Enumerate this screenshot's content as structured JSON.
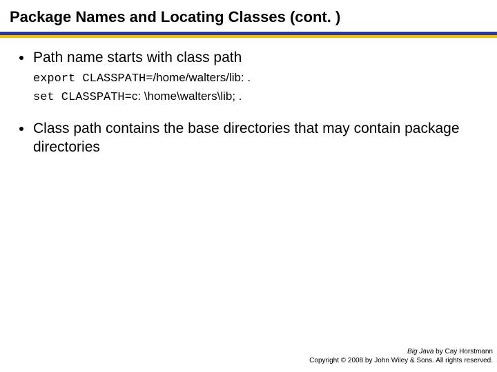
{
  "title": "Package Names and Locating Classes  (cont. )",
  "rule": {
    "blue": "#2c3a9a",
    "yellow": "#f2c400"
  },
  "bullets": [
    {
      "text": "Path name starts with class path",
      "code": [
        {
          "mono": "export CLASSPATH=",
          "rest": "/home/walters/lib: ."
        },
        {
          "mono": "set CLASSPATH=",
          "rest": "c: \\home\\walters\\lib; ."
        }
      ]
    },
    {
      "text": "Class path contains the base directories that may contain package directories",
      "code": []
    }
  ],
  "footer": {
    "book": "Big Java",
    "byline": " by Cay Horstmann",
    "copyright": "Copyright © 2008 by John Wiley & Sons.  All rights reserved."
  }
}
